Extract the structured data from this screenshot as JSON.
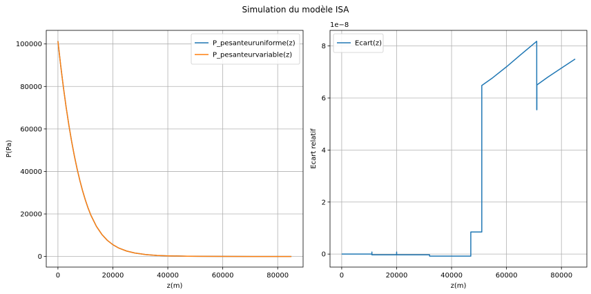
{
  "figure": {
    "suptitle": "Simulation du modèle ISA"
  },
  "colors": {
    "series_blue": "#1f77b4",
    "series_orange": "#ff7f0e",
    "grid": "#b0b0b0",
    "axes": "#000000"
  },
  "chart_data": [
    {
      "type": "line",
      "title": "",
      "xlabel": "z(m)",
      "ylabel": "P(Pa)",
      "xlim": [
        -4250,
        89250
      ],
      "ylim": [
        -5000,
        106400
      ],
      "xticks": [
        0,
        20000,
        40000,
        60000,
        80000
      ],
      "xtick_labels": [
        "0",
        "20000",
        "40000",
        "60000",
        "80000"
      ],
      "yticks": [
        0,
        20000,
        40000,
        60000,
        80000,
        100000
      ],
      "ytick_labels": [
        "0",
        "20000",
        "40000",
        "60000",
        "80000",
        "100000"
      ],
      "grid": true,
      "legend_position": "upper right",
      "series": [
        {
          "name": "P_pesanteuruniforme(z)",
          "color": "#1f77b4",
          "x": [
            0,
            1000,
            2000,
            3000,
            4000,
            5000,
            6000,
            7000,
            8000,
            9000,
            10000,
            11000,
            12000,
            14000,
            16000,
            18000,
            20000,
            22000,
            25000,
            28000,
            32000,
            36000,
            40000,
            47000,
            51000,
            60000,
            71000,
            80000,
            85000
          ],
          "y": [
            101325,
            89876,
            79501,
            70121,
            61660,
            54048,
            47217,
            41105,
            35651,
            30800,
            26500,
            22700,
            19399,
            14170,
            10353,
            7565,
            5529,
            4047,
            2549,
            1616,
            889,
            499,
            287,
            111,
            67,
            22,
            4,
            1,
            0
          ]
        },
        {
          "name": "P_pesanteurvariable(z)",
          "color": "#ff7f0e",
          "x": [
            0,
            1000,
            2000,
            3000,
            4000,
            5000,
            6000,
            7000,
            8000,
            9000,
            10000,
            11000,
            12000,
            14000,
            16000,
            18000,
            20000,
            22000,
            25000,
            28000,
            32000,
            36000,
            40000,
            47000,
            51000,
            60000,
            71000,
            80000,
            85000
          ],
          "y": [
            101325,
            89876,
            79501,
            70121,
            61660,
            54048,
            47217,
            41105,
            35651,
            30800,
            26500,
            22700,
            19399,
            14170,
            10353,
            7565,
            5529,
            4047,
            2549,
            1616,
            889,
            499,
            287,
            111,
            67,
            22,
            4,
            1,
            0
          ]
        }
      ]
    },
    {
      "type": "line",
      "title": "",
      "xlabel": "z(m)",
      "ylabel": "Ecart relatif",
      "offset_text": "1e−8",
      "xlim": [
        -4250,
        89250
      ],
      "ylim": [
        -0.5,
        8.6
      ],
      "xticks": [
        0,
        20000,
        40000,
        60000,
        80000
      ],
      "xtick_labels": [
        "0",
        "20000",
        "40000",
        "60000",
        "80000"
      ],
      "yticks": [
        0,
        2,
        4,
        6,
        8
      ],
      "ytick_labels": [
        "0",
        "2",
        "4",
        "6",
        "8"
      ],
      "grid": true,
      "legend_position": "upper left",
      "series": [
        {
          "name": "Ecart(z)",
          "color": "#1f77b4",
          "x": [
            0,
            11000,
            11000,
            11000,
            11100,
            20000,
            20000,
            20000,
            20100,
            32000,
            32000,
            47000,
            47000,
            51000,
            51000,
            55000,
            60000,
            65000,
            71000,
            71000,
            71050,
            71050,
            75000,
            80000,
            85000
          ],
          "y": [
            0.0,
            0.0,
            0.08,
            -0.03,
            -0.03,
            -0.03,
            0.08,
            -0.03,
            -0.03,
            -0.03,
            -0.08,
            -0.08,
            0.85,
            0.85,
            6.48,
            6.78,
            7.2,
            7.65,
            8.18,
            5.55,
            5.55,
            6.5,
            6.8,
            7.15,
            7.5
          ]
        }
      ]
    }
  ]
}
